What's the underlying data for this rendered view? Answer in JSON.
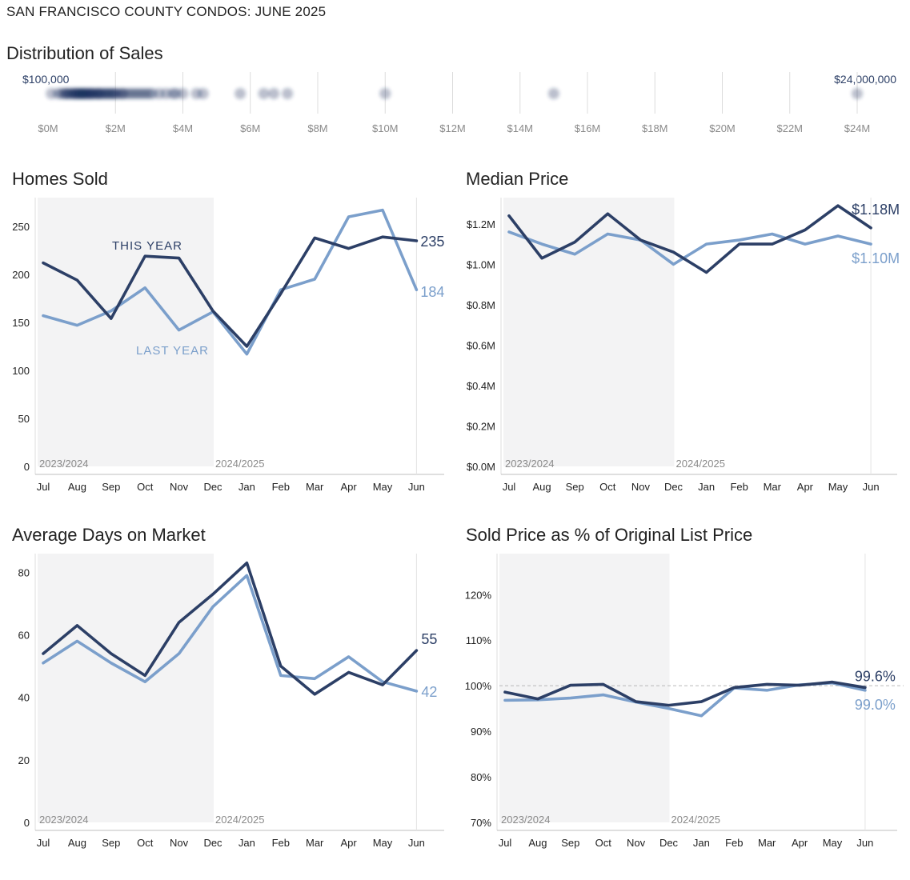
{
  "page": {
    "title": "SAN FRANCISCO COUNTY CONDOS: JUNE 2025"
  },
  "colors": {
    "this_year": "#2c3f66",
    "last_year": "#7b9fcb",
    "shade": "#f3f3f4",
    "grid": "#dcdcdc",
    "text": "#222222",
    "muted": "#8a8a8a"
  },
  "chart_data": [
    {
      "id": "distribution",
      "type": "scatter",
      "title": "Distribution of Sales",
      "min_label": "$100,000",
      "max_label": "$24,000,000",
      "xlim": [
        0,
        24
      ],
      "x_ticks": [
        0,
        2,
        4,
        6,
        8,
        10,
        12,
        14,
        16,
        18,
        20,
        22,
        24
      ],
      "x_tick_labels": [
        "$0M",
        "$2M",
        "$4M",
        "$6M",
        "$8M",
        "$10M",
        "$12M",
        "$14M",
        "$16M",
        "$18M",
        "$20M",
        "$22M",
        "$24M"
      ],
      "sales_millions": [
        0.1,
        0.3,
        0.4,
        0.5,
        0.5,
        0.6,
        0.6,
        0.7,
        0.7,
        0.8,
        0.8,
        0.8,
        0.9,
        0.9,
        0.9,
        1.0,
        1.0,
        1.0,
        1.0,
        1.1,
        1.1,
        1.1,
        1.2,
        1.2,
        1.2,
        1.3,
        1.3,
        1.3,
        1.4,
        1.4,
        1.5,
        1.5,
        1.5,
        1.6,
        1.6,
        1.7,
        1.7,
        1.8,
        1.8,
        1.9,
        1.9,
        2.0,
        2.0,
        2.1,
        2.2,
        2.2,
        2.3,
        2.4,
        2.5,
        2.6,
        2.7,
        2.8,
        2.9,
        3.0,
        3.1,
        3.3,
        3.5,
        3.7,
        3.8,
        4.0,
        4.4,
        4.6,
        5.7,
        6.4,
        6.7,
        7.1,
        10.0,
        15.0,
        24.0
      ]
    },
    {
      "id": "homes-sold",
      "type": "line",
      "title": "Homes Sold",
      "categories": [
        "Jul",
        "Aug",
        "Sep",
        "Oct",
        "Nov",
        "Dec",
        "Jan",
        "Feb",
        "Mar",
        "Apr",
        "May",
        "Jun"
      ],
      "series": [
        {
          "name": "THIS YEAR",
          "values": [
            212,
            194,
            154,
            219,
            217,
            162,
            125,
            180,
            238,
            227,
            239,
            235
          ]
        },
        {
          "name": "LAST YEAR",
          "values": [
            157,
            147,
            162,
            186,
            142,
            161,
            117,
            184,
            195,
            260,
            267,
            184
          ]
        }
      ],
      "ylim": [
        0,
        280
      ],
      "y_ticks": [
        0,
        50,
        100,
        150,
        200,
        250
      ],
      "y_tick_labels": [
        "0",
        "50",
        "100",
        "150",
        "200",
        "250"
      ],
      "shade_from": 0,
      "shade_to": 5,
      "period_labels": [
        "2023/2024",
        "2024/2025"
      ],
      "end_labels": [
        "235",
        "184"
      ],
      "series_labels": [
        "THIS YEAR",
        "LAST YEAR"
      ]
    },
    {
      "id": "median-price",
      "type": "line",
      "title": "Median Price",
      "categories": [
        "Jul",
        "Aug",
        "Sep",
        "Oct",
        "Nov",
        "Dec",
        "Jan",
        "Feb",
        "Mar",
        "Apr",
        "May",
        "Jun"
      ],
      "series": [
        {
          "name": "THIS YEAR",
          "values": [
            1.24,
            1.03,
            1.11,
            1.25,
            1.12,
            1.06,
            0.96,
            1.1,
            1.1,
            1.17,
            1.29,
            1.18
          ]
        },
        {
          "name": "LAST YEAR",
          "values": [
            1.16,
            1.1,
            1.05,
            1.15,
            1.12,
            1.0,
            1.1,
            1.12,
            1.15,
            1.1,
            1.14,
            1.1
          ]
        }
      ],
      "ylim": [
        0,
        1.33
      ],
      "y_ticks": [
        0,
        0.2,
        0.4,
        0.6,
        0.8,
        1.0,
        1.2
      ],
      "y_tick_labels": [
        "$0.0M",
        "$0.2M",
        "$0.4M",
        "$0.6M",
        "$0.8M",
        "$1.0M",
        "$1.2M"
      ],
      "shade_from": 0,
      "shade_to": 5,
      "period_labels": [
        "2023/2024",
        "2024/2025"
      ],
      "end_labels": [
        "$1.18M",
        "$1.10M"
      ]
    },
    {
      "id": "days-on-market",
      "type": "line",
      "title": "Average Days on Market",
      "categories": [
        "Jul",
        "Aug",
        "Sep",
        "Oct",
        "Nov",
        "Dec",
        "Jan",
        "Feb",
        "Mar",
        "Apr",
        "May",
        "Jun"
      ],
      "series": [
        {
          "name": "THIS YEAR",
          "values": [
            54,
            63,
            54,
            47,
            64,
            73,
            83,
            50,
            41,
            48,
            44,
            55
          ]
        },
        {
          "name": "LAST YEAR",
          "values": [
            51,
            58,
            51,
            45,
            54,
            69,
            79,
            47,
            46,
            53,
            45,
            42
          ]
        }
      ],
      "ylim": [
        0,
        86
      ],
      "y_ticks": [
        0,
        20,
        40,
        60,
        80
      ],
      "y_tick_labels": [
        "0",
        "20",
        "40",
        "60",
        "80"
      ],
      "shade_from": 0,
      "shade_to": 5,
      "period_labels": [
        "2023/2024",
        "2024/2025"
      ],
      "end_labels": [
        "55",
        "42"
      ]
    },
    {
      "id": "sold-vs-list",
      "type": "line",
      "title": "Sold Price as % of Original List Price",
      "categories": [
        "Jul",
        "Aug",
        "Sep",
        "Oct",
        "Nov",
        "Dec",
        "Jan",
        "Feb",
        "Mar",
        "Apr",
        "May",
        "Jun"
      ],
      "series": [
        {
          "name": "THIS YEAR",
          "values": [
            98.6,
            97.1,
            100.1,
            100.3,
            96.5,
            95.7,
            96.5,
            99.6,
            100.3,
            100.1,
            100.8,
            99.6
          ]
        },
        {
          "name": "LAST YEAR",
          "values": [
            96.8,
            96.9,
            97.3,
            98.0,
            96.4,
            95.0,
            93.4,
            99.5,
            99.0,
            100.2,
            100.6,
            99.0
          ]
        }
      ],
      "ylim": [
        70,
        129
      ],
      "y_ticks": [
        70,
        80,
        90,
        100,
        110,
        120
      ],
      "y_tick_labels": [
        "70%",
        "80%",
        "90%",
        "100%",
        "110%",
        "120%"
      ],
      "reference_line": 100,
      "shade_from": 0,
      "shade_to": 5,
      "period_labels": [
        "2023/2024",
        "2024/2025"
      ],
      "end_labels": [
        "99.6%",
        "99.0%"
      ]
    }
  ]
}
